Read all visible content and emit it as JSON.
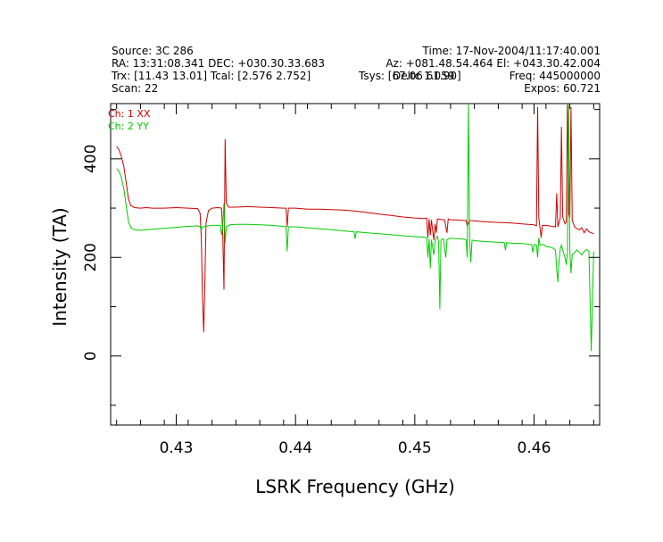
{
  "header": {
    "source": "Source: 3C 286",
    "time": "Time: 17-Nov-2004/11:17:40.001",
    "ra_dec": "RA: 13:31:08.341 DEC: +030.30.33.683",
    "az_el": "Az: +081.48.54.464 El: +043.30.42.004",
    "trx_tcal": "Trx: [11.43 13.01]  Tcal: [2.576 2.752]",
    "tsys": "Tsys: [67.06 61.90]",
    "overlap_text": "Deltc 1.059",
    "freq": "Freq: 445000000",
    "scan": "Scan: 22",
    "expos": "Expos: 60.721"
  },
  "chart_data": {
    "type": "line",
    "title": "",
    "xlabel": "LSRK Frequency (GHz)",
    "ylabel": "Intensity (TA)",
    "xlim": [
      0.4245,
      0.4655
    ],
    "ylim": [
      -140,
      512
    ],
    "x_ticks": [
      0.43,
      0.44,
      0.45,
      0.46
    ],
    "x_tick_labels": [
      "0.43",
      "0.44",
      "0.45",
      "0.46"
    ],
    "y_ticks": [
      0,
      200,
      400
    ],
    "y_tick_labels": [
      "0",
      "200",
      "400"
    ],
    "grid": false,
    "legend_placement": "top-left",
    "series": [
      {
        "name": "Ch: 1 XX",
        "color": "#cc0000",
        "points": [
          [
            0.425,
            425
          ],
          [
            0.4252,
            418
          ],
          [
            0.4254,
            405
          ],
          [
            0.4256,
            385
          ],
          [
            0.4258,
            352
          ],
          [
            0.426,
            318
          ],
          [
            0.4262,
            305
          ],
          [
            0.4265,
            301
          ],
          [
            0.427,
            300
          ],
          [
            0.4275,
            301
          ],
          [
            0.428,
            300
          ],
          [
            0.429,
            300
          ],
          [
            0.43,
            301
          ],
          [
            0.431,
            300
          ],
          [
            0.4318,
            299
          ],
          [
            0.432,
            290
          ],
          [
            0.4321,
            240
          ],
          [
            0.4322,
            120
          ],
          [
            0.4323,
            48
          ],
          [
            0.4324,
            150
          ],
          [
            0.4325,
            270
          ],
          [
            0.4327,
            295
          ],
          [
            0.433,
            300
          ],
          [
            0.4335,
            301
          ],
          [
            0.4338,
            300
          ],
          [
            0.4339,
            250
          ],
          [
            0.434,
            135
          ],
          [
            0.4341,
            440
          ],
          [
            0.4342,
            310
          ],
          [
            0.4344,
            302
          ],
          [
            0.435,
            302
          ],
          [
            0.436,
            303
          ],
          [
            0.437,
            302
          ],
          [
            0.438,
            301
          ],
          [
            0.439,
            300
          ],
          [
            0.4392,
            300
          ],
          [
            0.4393,
            262
          ],
          [
            0.4394,
            300
          ],
          [
            0.44,
            300
          ],
          [
            0.441,
            298
          ],
          [
            0.442,
            298
          ],
          [
            0.443,
            297
          ],
          [
            0.444,
            296
          ],
          [
            0.445,
            294
          ],
          [
            0.446,
            291
          ],
          [
            0.447,
            288
          ],
          [
            0.448,
            285
          ],
          [
            0.449,
            282
          ],
          [
            0.45,
            280
          ],
          [
            0.4508,
            279
          ],
          [
            0.451,
            280
          ],
          [
            0.4511,
            240
          ],
          [
            0.4512,
            278
          ],
          [
            0.4513,
            245
          ],
          [
            0.4514,
            276
          ],
          [
            0.4516,
            235
          ],
          [
            0.4517,
            268
          ],
          [
            0.4518,
            250
          ],
          [
            0.4519,
            278
          ],
          [
            0.4522,
            277
          ],
          [
            0.4525,
            276
          ],
          [
            0.4527,
            250
          ],
          [
            0.4528,
            278
          ],
          [
            0.453,
            276
          ],
          [
            0.4535,
            276
          ],
          [
            0.454,
            275
          ],
          [
            0.4543,
            275
          ],
          [
            0.4544,
            264
          ],
          [
            0.4546,
            275
          ],
          [
            0.455,
            274
          ],
          [
            0.456,
            272
          ],
          [
            0.457,
            271
          ],
          [
            0.458,
            270
          ],
          [
            0.459,
            268
          ],
          [
            0.46,
            266
          ],
          [
            0.4602,
            264
          ],
          [
            0.4603,
            505
          ],
          [
            0.4604,
            280
          ],
          [
            0.4606,
            240
          ],
          [
            0.4607,
            265
          ],
          [
            0.461,
            265
          ],
          [
            0.4615,
            263
          ],
          [
            0.4618,
            262
          ],
          [
            0.4619,
            330
          ],
          [
            0.462,
            262
          ],
          [
            0.4622,
            280
          ],
          [
            0.4623,
            465
          ],
          [
            0.4624,
            282
          ],
          [
            0.4626,
            268
          ],
          [
            0.4627,
            272
          ],
          [
            0.4628,
            510
          ],
          [
            0.4629,
            290
          ],
          [
            0.463,
            280
          ],
          [
            0.4631,
            505
          ],
          [
            0.4632,
            275
          ],
          [
            0.4634,
            262
          ],
          [
            0.4636,
            258
          ],
          [
            0.4638,
            256
          ],
          [
            0.464,
            260
          ],
          [
            0.4642,
            250
          ],
          [
            0.4644,
            258
          ],
          [
            0.4646,
            252
          ],
          [
            0.4648,
            250
          ],
          [
            0.465,
            248
          ]
        ]
      },
      {
        "name": "Ch: 2 YY",
        "color": "#00cc00",
        "points": [
          [
            0.425,
            380
          ],
          [
            0.4252,
            375
          ],
          [
            0.4254,
            362
          ],
          [
            0.4256,
            340
          ],
          [
            0.4258,
            305
          ],
          [
            0.426,
            272
          ],
          [
            0.4262,
            260
          ],
          [
            0.4265,
            256
          ],
          [
            0.427,
            255
          ],
          [
            0.428,
            257
          ],
          [
            0.429,
            259
          ],
          [
            0.43,
            261
          ],
          [
            0.431,
            263
          ],
          [
            0.4318,
            264
          ],
          [
            0.432,
            262
          ],
          [
            0.4321,
            255
          ],
          [
            0.4322,
            262
          ],
          [
            0.433,
            265
          ],
          [
            0.4337,
            265
          ],
          [
            0.4338,
            245
          ],
          [
            0.4339,
            262
          ],
          [
            0.434,
            310
          ],
          [
            0.4341,
            230
          ],
          [
            0.4342,
            262
          ],
          [
            0.4345,
            266
          ],
          [
            0.435,
            267
          ],
          [
            0.436,
            267
          ],
          [
            0.437,
            266
          ],
          [
            0.438,
            265
          ],
          [
            0.439,
            263
          ],
          [
            0.4392,
            262
          ],
          [
            0.4393,
            212
          ],
          [
            0.4394,
            262
          ],
          [
            0.44,
            262
          ],
          [
            0.441,
            260
          ],
          [
            0.442,
            258
          ],
          [
            0.443,
            256
          ],
          [
            0.444,
            254
          ],
          [
            0.4449,
            252
          ],
          [
            0.445,
            238
          ],
          [
            0.4451,
            252
          ],
          [
            0.446,
            250
          ],
          [
            0.447,
            248
          ],
          [
            0.448,
            246
          ],
          [
            0.449,
            244
          ],
          [
            0.45,
            242
          ],
          [
            0.4508,
            241
          ],
          [
            0.451,
            240
          ],
          [
            0.4511,
            200
          ],
          [
            0.4512,
            238
          ],
          [
            0.4513,
            178
          ],
          [
            0.4514,
            236
          ],
          [
            0.4516,
            205
          ],
          [
            0.4517,
            232
          ],
          [
            0.4518,
            240
          ],
          [
            0.4519,
            243
          ],
          [
            0.452,
            230
          ],
          [
            0.4521,
            95
          ],
          [
            0.4522,
            235
          ],
          [
            0.4524,
            238
          ],
          [
            0.4526,
            200
          ],
          [
            0.4527,
            236
          ],
          [
            0.453,
            239
          ],
          [
            0.4535,
            238
          ],
          [
            0.454,
            237
          ],
          [
            0.4543,
            236
          ],
          [
            0.4544,
            200
          ],
          [
            0.4545,
            510
          ],
          [
            0.4546,
            236
          ],
          [
            0.4547,
            190
          ],
          [
            0.4548,
            235
          ],
          [
            0.455,
            234
          ],
          [
            0.456,
            232
          ],
          [
            0.457,
            231
          ],
          [
            0.4575,
            230
          ],
          [
            0.4576,
            215
          ],
          [
            0.4577,
            230
          ],
          [
            0.458,
            229
          ],
          [
            0.459,
            228
          ],
          [
            0.4598,
            226
          ],
          [
            0.4599,
            210
          ],
          [
            0.46,
            226
          ],
          [
            0.4602,
            225
          ],
          [
            0.4603,
            200
          ],
          [
            0.4604,
            240
          ],
          [
            0.4605,
            225
          ],
          [
            0.4608,
            226
          ],
          [
            0.461,
            222
          ],
          [
            0.4615,
            220
          ],
          [
            0.4618,
            215
          ],
          [
            0.4619,
            175
          ],
          [
            0.462,
            150
          ],
          [
            0.4621,
            195
          ],
          [
            0.4622,
            218
          ],
          [
            0.4623,
            225
          ],
          [
            0.4624,
            215
          ],
          [
            0.4626,
            200
          ],
          [
            0.4627,
            185
          ],
          [
            0.4628,
            210
          ],
          [
            0.4629,
            510
          ],
          [
            0.463,
            215
          ],
          [
            0.4631,
            168
          ],
          [
            0.4632,
            205
          ],
          [
            0.4634,
            210
          ],
          [
            0.4636,
            215
          ],
          [
            0.4638,
            210
          ],
          [
            0.464,
            205
          ],
          [
            0.4642,
            212
          ],
          [
            0.4644,
            216
          ],
          [
            0.4646,
            212
          ],
          [
            0.4648,
            10
          ],
          [
            0.465,
            212
          ]
        ]
      }
    ]
  }
}
